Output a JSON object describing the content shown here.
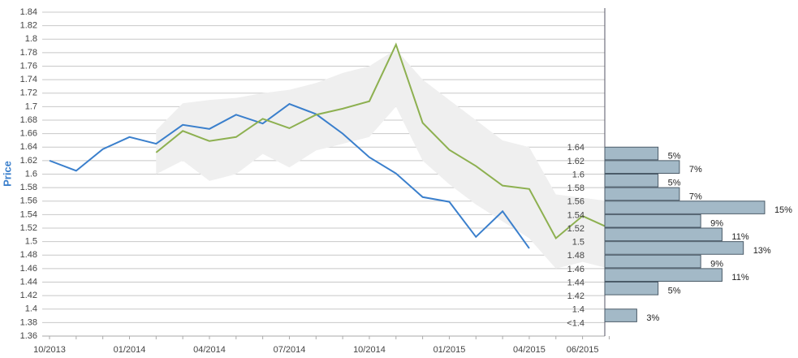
{
  "chart_data": [
    {
      "type": "line",
      "y_label": "Price",
      "categories": [
        "10/2013",
        null,
        null,
        "01/2014",
        null,
        null,
        "04/2014",
        null,
        null,
        "07/2014",
        null,
        null,
        "10/2014",
        null,
        null,
        "01/2015",
        null,
        null,
        "04/2015",
        null,
        "06/2015",
        null
      ],
      "ylim": [
        1.36,
        1.84
      ],
      "yticks": [
        1.36,
        1.38,
        1.4,
        1.42,
        1.44,
        1.46,
        1.48,
        1.5,
        1.52,
        1.54,
        1.56,
        1.58,
        1.6,
        1.62,
        1.64,
        1.66,
        1.68,
        1.7,
        1.72,
        1.74,
        1.76,
        1.78,
        1.8,
        1.82,
        1.84
      ],
      "grid": true,
      "band": {
        "color": "#efefef",
        "upper": [
          null,
          null,
          null,
          null,
          1.665,
          1.705,
          1.71,
          1.713,
          1.72,
          1.725,
          1.735,
          1.75,
          1.76,
          1.785,
          1.74,
          1.71,
          1.68,
          1.65,
          1.64,
          1.57,
          1.565,
          1.56
        ],
        "lower": [
          null,
          null,
          null,
          null,
          1.6,
          1.62,
          1.59,
          1.6,
          1.63,
          1.61,
          1.635,
          1.645,
          1.655,
          1.7,
          1.62,
          1.585,
          1.555,
          1.53,
          1.505,
          1.46,
          1.47,
          1.46
        ]
      },
      "series": [
        {
          "color": "#3a7fcc",
          "values": [
            1.62,
            1.605,
            1.637,
            1.655,
            1.645,
            1.673,
            1.667,
            1.688,
            1.675,
            1.704,
            1.689,
            1.66,
            1.625,
            1.601,
            1.566,
            1.559,
            1.507,
            1.545,
            1.49,
            null,
            null,
            null
          ]
        },
        {
          "color": "#8db050",
          "values": [
            null,
            null,
            null,
            null,
            1.632,
            1.664,
            1.649,
            1.655,
            1.682,
            1.668,
            1.688,
            1.697,
            1.708,
            1.792,
            1.676,
            1.636,
            1.612,
            1.583,
            1.578,
            1.505,
            1.538,
            1.52
          ]
        }
      ]
    },
    {
      "type": "hbar",
      "categories": [
        "1.64",
        "1.62",
        "1.6",
        "1.58",
        "1.56",
        "1.54",
        "1.52",
        "1.5",
        "1.48",
        "1.46",
        "1.44",
        "1.42",
        "1.4",
        "<1.4"
      ],
      "values": [
        5,
        7,
        5,
        7,
        15,
        9,
        11,
        13,
        9,
        11,
        5,
        null,
        3,
        null
      ],
      "value_labels": [
        "5%",
        "7%",
        "5%",
        "7%",
        "15%",
        "9%",
        "11%",
        "13%",
        "9%",
        "11%",
        "5%",
        null,
        "3%",
        null
      ],
      "color": "#a3b9c7"
    }
  ]
}
